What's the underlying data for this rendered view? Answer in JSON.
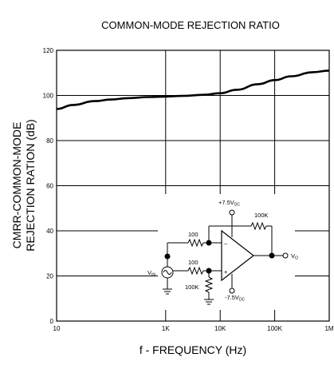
{
  "chart_data": {
    "type": "line",
    "title": "COMMON-MODE REJECTION RATIO",
    "xlabel": "f - FREQUENCY (Hz)",
    "ylabel_line1": "CMRR-COMMON-MODE",
    "ylabel_line2": "REJECTION RATION (dB)",
    "x_scale": "log",
    "xlim": [
      10,
      1000000
    ],
    "ylim": [
      0,
      120
    ],
    "x_ticks": [
      {
        "value": 10,
        "label": "10"
      },
      {
        "value": 1000,
        "label": "1K"
      },
      {
        "value": 10000,
        "label": "10K"
      },
      {
        "value": 100000,
        "label": "100K"
      },
      {
        "value": 1000000,
        "label": "1M"
      }
    ],
    "y_ticks": [
      0,
      20,
      40,
      60,
      80,
      100,
      120
    ],
    "grid": true,
    "series": [
      {
        "x": [
          10,
          20,
          50,
          100,
          200,
          500,
          1000,
          2000,
          5000,
          10000,
          20000,
          50000,
          100000,
          200000,
          500000,
          1000000
        ],
        "y": [
          94,
          95.8,
          97.5,
          98.2,
          98.8,
          99.3,
          99.5,
          99.8,
          100.3,
          101,
          102.5,
          105,
          106.8,
          108.5,
          110.3,
          111
        ]
      }
    ]
  },
  "circuit": {
    "supply_pos_prefix": "+7.5V",
    "supply_pos_sub": "DC",
    "supply_neg_prefix": "-7.5V",
    "supply_neg_sub": "DC",
    "r_in_top": "100",
    "r_in_bottom": "100",
    "r_feedback": "100K",
    "r_ground": "100K",
    "vin_main": "V",
    "vin_sub": "IN",
    "vo_main": "V",
    "vo_sub": "O",
    "minus_sign": "−",
    "plus_sign": "+"
  }
}
